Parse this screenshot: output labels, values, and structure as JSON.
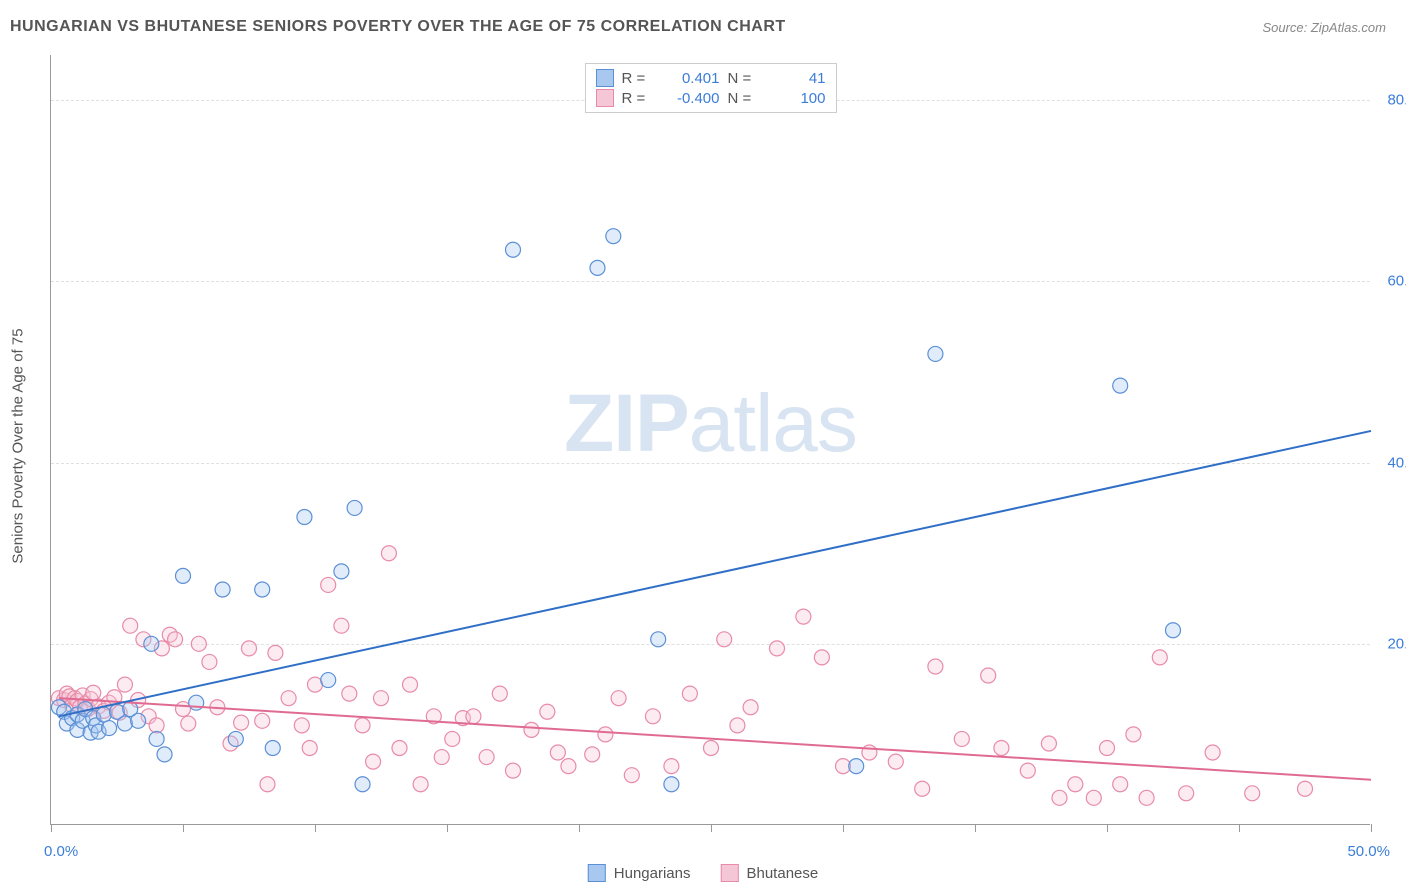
{
  "title": "HUNGARIAN VS BHUTANESE SENIORS POVERTY OVER THE AGE OF 75 CORRELATION CHART",
  "source_label": "Source: ",
  "source_name": "ZipAtlas.com",
  "y_axis_title": "Seniors Poverty Over the Age of 75",
  "watermark_zip": "ZIP",
  "watermark_atlas": "atlas",
  "chart": {
    "type": "scatter-correlation",
    "xlim": [
      0,
      50
    ],
    "ylim": [
      0,
      85
    ],
    "x_ticks": [
      0,
      5,
      10,
      15,
      20,
      25,
      30,
      35,
      40,
      45,
      50
    ],
    "x_tick_labels": {
      "0": "0.0%",
      "50": "50.0%"
    },
    "y_grid": [
      20,
      40,
      60,
      80
    ],
    "y_tick_labels": {
      "20": "20.0%",
      "40": "40.0%",
      "60": "60.0%",
      "80": "80.0%"
    },
    "background_color": "#ffffff",
    "grid_color": "#e0e0e0",
    "axis_color": "#999999",
    "tick_label_color": "#3b7dd8",
    "title_color": "#555555",
    "marker_radius": 7.5,
    "marker_stroke_width": 1.2,
    "marker_fill_opacity": 0.35,
    "line_width": 2,
    "series": [
      {
        "name": "Hungarians",
        "color_fill": "#a8c8f0",
        "color_stroke": "#5b8fd6",
        "line_color": "#2f6fc7",
        "R": "0.401",
        "N": "41",
        "trend": {
          "x1": 0.3,
          "y1": 12.0,
          "x2": 50.0,
          "y2": 43.5
        },
        "points": [
          [
            0.3,
            13
          ],
          [
            0.5,
            12.5
          ],
          [
            0.6,
            11.2
          ],
          [
            0.8,
            11.8
          ],
          [
            1.0,
            12.2
          ],
          [
            1.0,
            10.5
          ],
          [
            1.2,
            11.5
          ],
          [
            1.3,
            12.8
          ],
          [
            1.5,
            10.2
          ],
          [
            1.6,
            11.8
          ],
          [
            1.7,
            11
          ],
          [
            1.8,
            10.3
          ],
          [
            2.0,
            12.2
          ],
          [
            2.2,
            10.7
          ],
          [
            2.5,
            12.5
          ],
          [
            2.8,
            11.2
          ],
          [
            3.0,
            12.8
          ],
          [
            3.3,
            11.5
          ],
          [
            3.8,
            20.0
          ],
          [
            4.0,
            9.5
          ],
          [
            4.3,
            7.8
          ],
          [
            5.0,
            27.5
          ],
          [
            5.5,
            13.5
          ],
          [
            6.5,
            26.0
          ],
          [
            7.0,
            9.5
          ],
          [
            8.0,
            26.0
          ],
          [
            8.4,
            8.5
          ],
          [
            9.6,
            34.0
          ],
          [
            10.5,
            16.0
          ],
          [
            11.0,
            28.0
          ],
          [
            11.5,
            35.0
          ],
          [
            11.8,
            4.5
          ],
          [
            17.5,
            63.5
          ],
          [
            20.7,
            61.5
          ],
          [
            21.3,
            65.0
          ],
          [
            23.0,
            20.5
          ],
          [
            23.5,
            4.5
          ],
          [
            30.5,
            6.5
          ],
          [
            33.5,
            52.0
          ],
          [
            40.5,
            48.5
          ],
          [
            42.5,
            21.5
          ]
        ]
      },
      {
        "name": "Bhutanese",
        "color_fill": "#f5c6d6",
        "color_stroke": "#e88ba8",
        "line_color": "#e06b92",
        "R": "-0.400",
        "N": "100",
        "trend": {
          "x1": 0.3,
          "y1": 14.0,
          "x2": 50.0,
          "y2": 5.0
        },
        "points": [
          [
            0.3,
            14
          ],
          [
            0.5,
            13.8
          ],
          [
            0.6,
            14.5
          ],
          [
            0.7,
            14.2
          ],
          [
            0.8,
            13.2
          ],
          [
            0.9,
            14.0
          ],
          [
            1.0,
            13.7
          ],
          [
            1.1,
            13.0
          ],
          [
            1.2,
            14.3
          ],
          [
            1.3,
            13.4
          ],
          [
            1.4,
            12.8
          ],
          [
            1.5,
            13.9
          ],
          [
            1.6,
            14.6
          ],
          [
            1.8,
            13.1
          ],
          [
            2.0,
            12.6
          ],
          [
            2.2,
            13.5
          ],
          [
            2.4,
            14.1
          ],
          [
            2.6,
            12.4
          ],
          [
            2.8,
            15.5
          ],
          [
            3.0,
            22.0
          ],
          [
            3.3,
            13.8
          ],
          [
            3.5,
            20.5
          ],
          [
            3.7,
            12.0
          ],
          [
            4.0,
            11.0
          ],
          [
            4.2,
            19.5
          ],
          [
            4.5,
            21.0
          ],
          [
            4.7,
            20.5
          ],
          [
            5.0,
            12.8
          ],
          [
            5.2,
            11.2
          ],
          [
            5.6,
            20.0
          ],
          [
            6.0,
            18.0
          ],
          [
            6.3,
            13.0
          ],
          [
            6.8,
            9.0
          ],
          [
            7.2,
            11.3
          ],
          [
            7.5,
            19.5
          ],
          [
            8.0,
            11.5
          ],
          [
            8.2,
            4.5
          ],
          [
            8.5,
            19.0
          ],
          [
            9.0,
            14.0
          ],
          [
            9.5,
            11.0
          ],
          [
            9.8,
            8.5
          ],
          [
            10.0,
            15.5
          ],
          [
            10.5,
            26.5
          ],
          [
            11.0,
            22.0
          ],
          [
            11.3,
            14.5
          ],
          [
            11.8,
            11.0
          ],
          [
            12.2,
            7.0
          ],
          [
            12.5,
            14.0
          ],
          [
            12.8,
            30.0
          ],
          [
            13.2,
            8.5
          ],
          [
            13.6,
            15.5
          ],
          [
            14.0,
            4.5
          ],
          [
            14.5,
            12.0
          ],
          [
            14.8,
            7.5
          ],
          [
            15.2,
            9.5
          ],
          [
            15.6,
            11.8
          ],
          [
            16.0,
            12.0
          ],
          [
            16.5,
            7.5
          ],
          [
            17.0,
            14.5
          ],
          [
            17.5,
            6.0
          ],
          [
            18.2,
            10.5
          ],
          [
            18.8,
            12.5
          ],
          [
            19.2,
            8.0
          ],
          [
            19.6,
            6.5
          ],
          [
            20.5,
            7.8
          ],
          [
            21.0,
            10.0
          ],
          [
            21.5,
            14.0
          ],
          [
            22.0,
            5.5
          ],
          [
            22.8,
            12.0
          ],
          [
            23.5,
            6.5
          ],
          [
            24.2,
            14.5
          ],
          [
            25.0,
            8.5
          ],
          [
            25.5,
            20.5
          ],
          [
            26.0,
            11.0
          ],
          [
            26.5,
            13.0
          ],
          [
            27.5,
            19.5
          ],
          [
            28.5,
            23.0
          ],
          [
            29.2,
            18.5
          ],
          [
            30.0,
            6.5
          ],
          [
            31.0,
            8.0
          ],
          [
            32.0,
            7.0
          ],
          [
            33.0,
            4.0
          ],
          [
            33.5,
            17.5
          ],
          [
            34.5,
            9.5
          ],
          [
            35.5,
            16.5
          ],
          [
            36.0,
            8.5
          ],
          [
            37.0,
            6.0
          ],
          [
            37.8,
            9.0
          ],
          [
            38.2,
            3.0
          ],
          [
            38.8,
            4.5
          ],
          [
            39.5,
            3.0
          ],
          [
            40.0,
            8.5
          ],
          [
            40.5,
            4.5
          ],
          [
            41.0,
            10.0
          ],
          [
            41.5,
            3.0
          ],
          [
            42.0,
            18.5
          ],
          [
            43.0,
            3.5
          ],
          [
            44.0,
            8.0
          ],
          [
            45.5,
            3.5
          ],
          [
            47.5,
            4.0
          ]
        ]
      }
    ]
  },
  "legend_top_labels": {
    "R": "R =",
    "N": "N ="
  },
  "legend_bottom": [
    "Hungarians",
    "Bhutanese"
  ]
}
